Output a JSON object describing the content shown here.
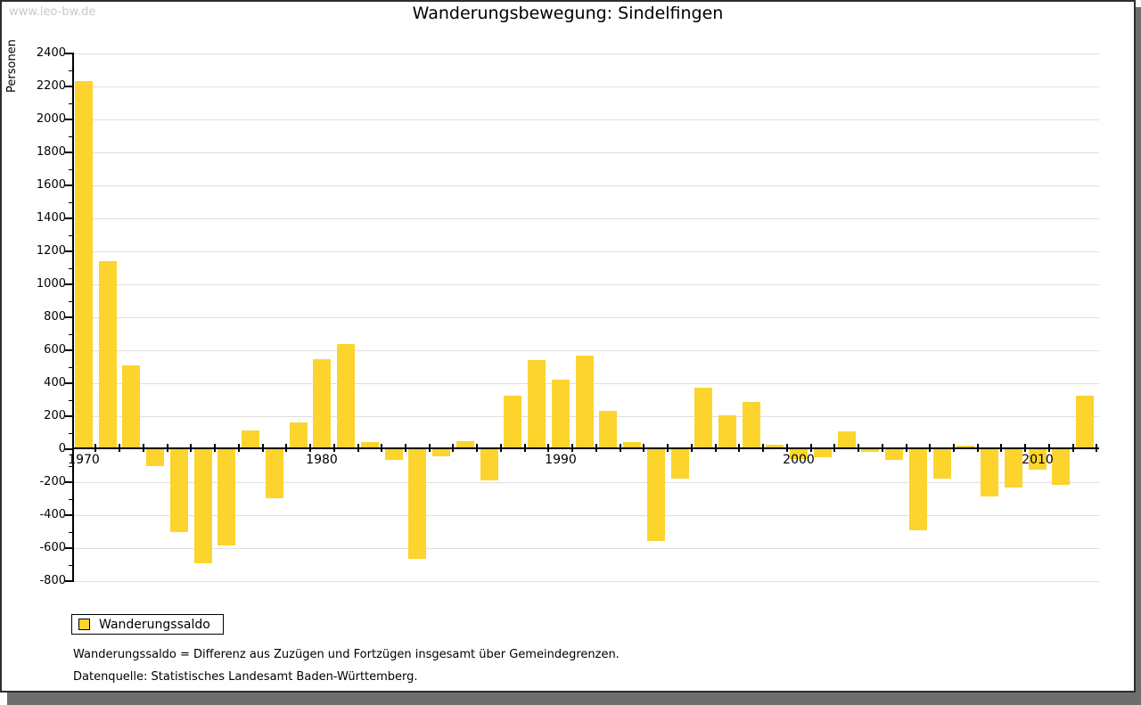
{
  "watermark": "www.leo-bw.de",
  "title": "Wanderungsbewegung: Sindelfingen",
  "legend": {
    "label": "Wanderungssaldo"
  },
  "footnotes": [
    "Wanderungssaldo = Differenz aus Zuzügen und Fortzügen insgesamt über Gemeindegrenzen.",
    "Datenquelle: Statistisches Landesamt Baden-Württemberg."
  ],
  "colors": {
    "bar": "#FCD42D",
    "grid": "#DEDEDE",
    "axis": "#000000",
    "watermark": "#C9C9C9",
    "shadow": "#6E6E6E",
    "frame": "#2E2E2E"
  },
  "chart_data": {
    "type": "bar",
    "title": "Wanderungsbewegung: Sindelfingen",
    "xlabel": "",
    "ylabel": "Personen",
    "ylim": [
      -800,
      2400
    ],
    "ytick_step": 200,
    "ytick_minor_step": 100,
    "grid": true,
    "legend_position": "bottom-left",
    "xtick_labels": [
      "1970",
      "1980",
      "1990",
      "2000",
      "2010"
    ],
    "x": [
      1970,
      1971,
      1972,
      1973,
      1974,
      1975,
      1976,
      1977,
      1978,
      1979,
      1980,
      1981,
      1982,
      1983,
      1984,
      1985,
      1986,
      1987,
      1988,
      1989,
      1990,
      1991,
      1992,
      1993,
      1994,
      1995,
      1996,
      1997,
      1998,
      1999,
      2000,
      2001,
      2002,
      2003,
      2004,
      2005,
      2006,
      2007,
      2008,
      2009,
      2010,
      2011,
      2012
    ],
    "series": [
      {
        "name": "Wanderungssaldo",
        "values": [
          2235,
          1140,
          510,
          -105,
          -505,
          -690,
          -585,
          115,
          -295,
          160,
          545,
          640,
          45,
          -65,
          -665,
          -45,
          50,
          -190,
          325,
          540,
          420,
          565,
          235,
          45,
          -555,
          -180,
          375,
          205,
          285,
          25,
          -60,
          -50,
          110,
          -15,
          -65,
          -490,
          -180,
          20,
          -285,
          -230,
          -125,
          -215,
          325
        ]
      }
    ]
  }
}
